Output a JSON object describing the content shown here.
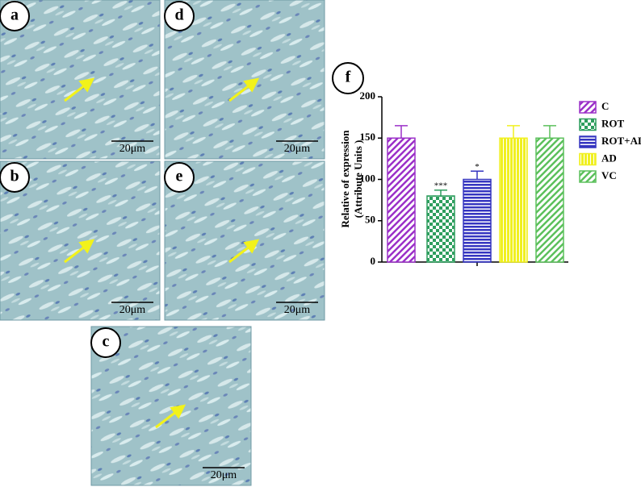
{
  "panels": [
    {
      "label": "a",
      "scale": "20μm"
    },
    {
      "label": "d",
      "scale": "20μm"
    },
    {
      "label": "b",
      "scale": "20μm"
    },
    {
      "label": "e",
      "scale": "20μm"
    },
    {
      "label": "c",
      "scale": "20μm"
    }
  ],
  "chart_data": {
    "type": "bar",
    "panel_label": "f",
    "ylabel": [
      "Relative of expression",
      "(Attribute Units )"
    ],
    "categories": [
      "C",
      "ROT",
      "ROT+AD",
      "AD",
      "VC"
    ],
    "values": [
      150,
      80,
      100,
      150,
      150
    ],
    "errors": [
      15,
      7,
      10,
      15,
      15
    ],
    "annotations": [
      null,
      "***",
      "*",
      null,
      null
    ],
    "colors": [
      "#9b30c8",
      "#2e9e5e",
      "#3535c0",
      "#f0f020",
      "#5cc05c"
    ],
    "patterns": [
      "diagonal",
      "checker",
      "horizontal",
      "vertical",
      "diagonal"
    ],
    "ylim": [
      0,
      200
    ],
    "yticks": [
      0,
      50,
      100,
      150,
      200
    ]
  }
}
